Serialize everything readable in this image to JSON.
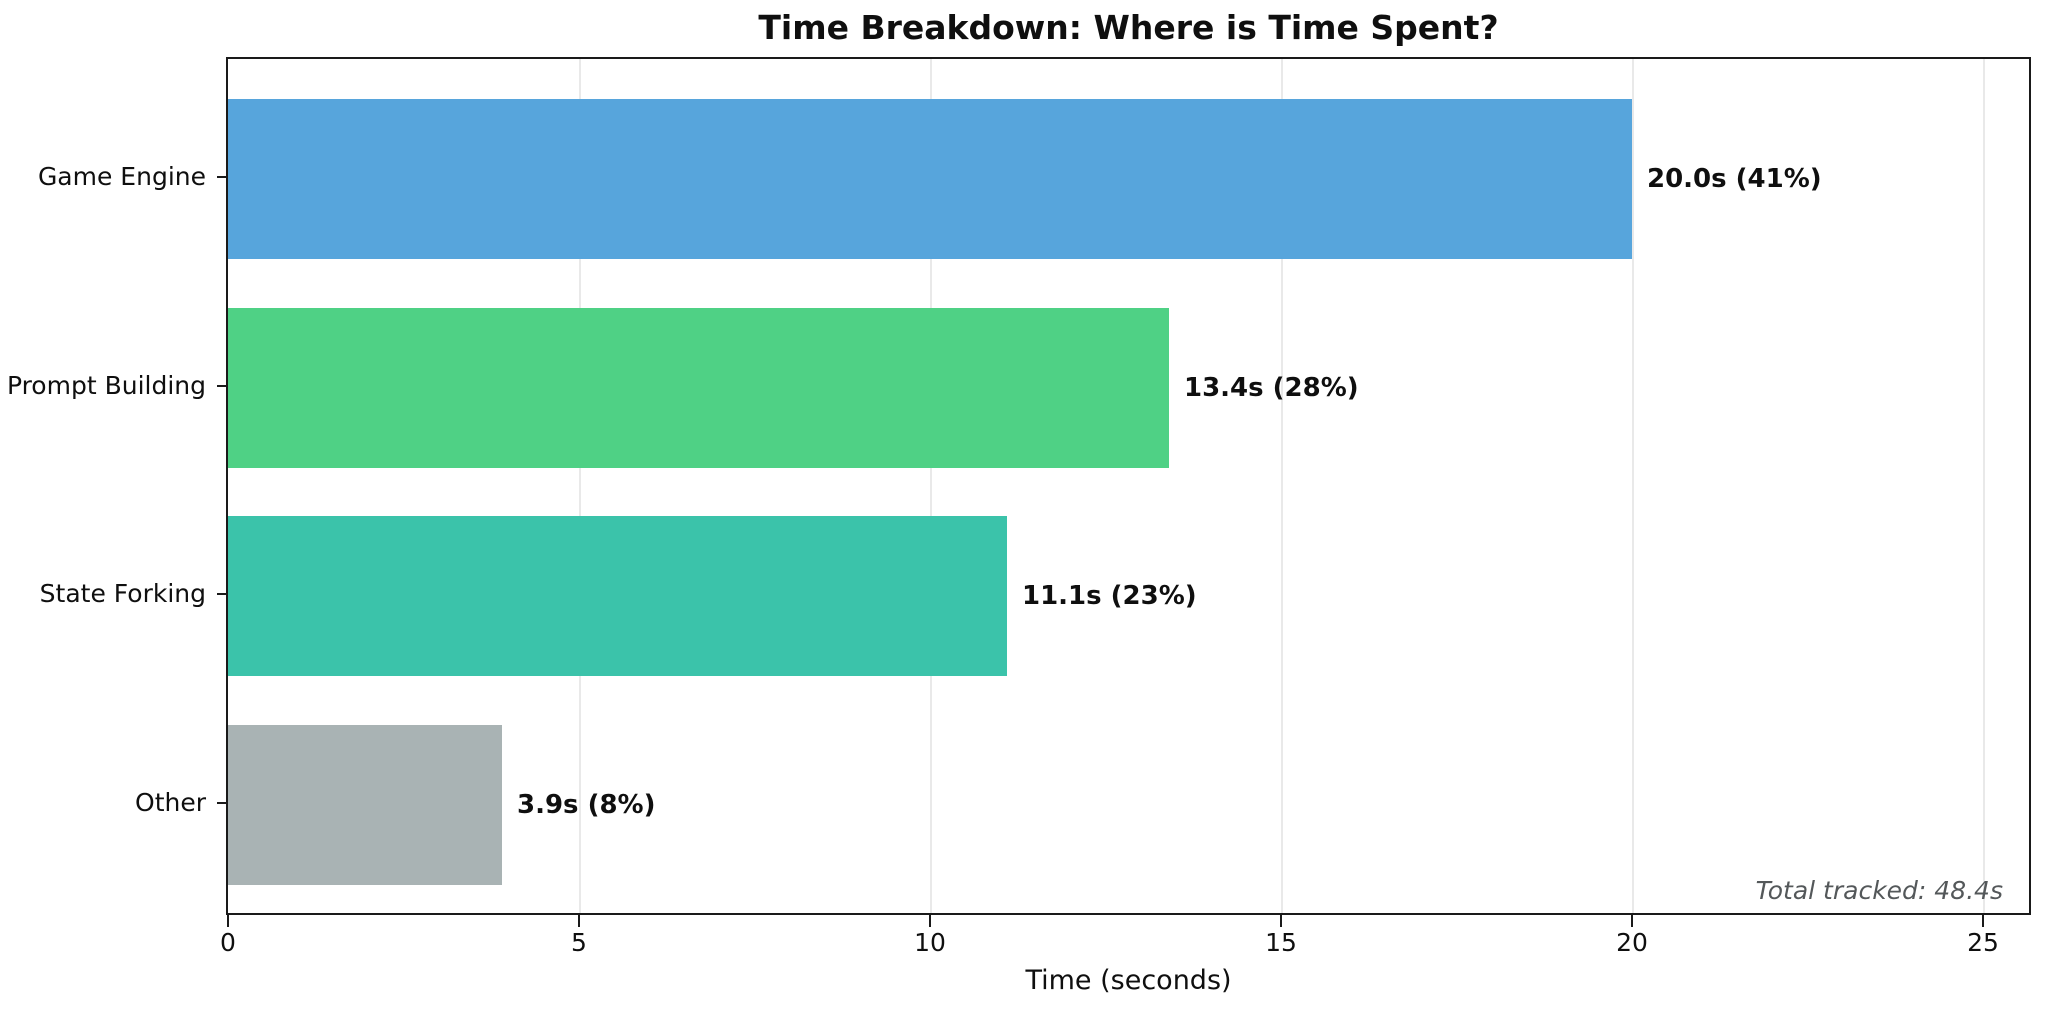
{
  "chart_data": {
    "type": "bar",
    "orientation": "horizontal",
    "title": "Time Breakdown: Where is Time Spent?",
    "xlabel": "Time (seconds)",
    "ylabel": "",
    "categories": [
      "Game Engine",
      "Prompt Building",
      "State Forking",
      "Other"
    ],
    "values": [
      20.0,
      13.4,
      11.1,
      3.9
    ],
    "percentages": [
      41,
      28,
      23,
      8
    ],
    "bar_labels": [
      "20.0s (41%)",
      "13.4s (28%)",
      "11.1s (23%)",
      "3.9s (8%)"
    ],
    "bar_colors": [
      "#57a5dc",
      "#4fd185",
      "#3bc3aa",
      "#a9b3b4"
    ],
    "xlim": [
      0,
      25.65
    ],
    "xticks": [
      0,
      5,
      10,
      15,
      20,
      25
    ],
    "grid": true,
    "legend": "none",
    "annotation": "Total tracked: 48.4s"
  },
  "colors": {
    "axis": "#1a1a1a",
    "grid": "#e9e9e9",
    "annotation_text": "#54585a",
    "background": "#ffffff"
  }
}
